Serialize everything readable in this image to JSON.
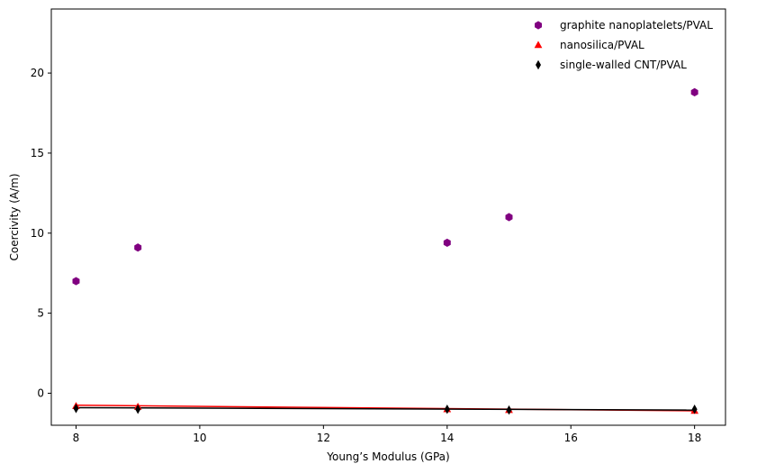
{
  "chart_data": {
    "type": "scatter",
    "title": "",
    "xlabel": "Young’s Modulus (GPa)",
    "ylabel": "Coercivity (A/m)",
    "xlim": [
      7.6,
      18.5
    ],
    "ylim": [
      -2.0,
      24.0
    ],
    "xticks": [
      8,
      10,
      12,
      14,
      16,
      18
    ],
    "yticks": [
      0,
      5,
      10,
      15,
      20
    ],
    "grid": false,
    "legend_position": "top-right",
    "series": [
      {
        "name": "graphite nanoplatelets/PVAL",
        "marker": "hexagon",
        "color": "#800080",
        "x": [
          8,
          9,
          14,
          15,
          18
        ],
        "y": [
          7.0,
          9.1,
          9.4,
          11.0,
          18.8
        ],
        "fit_line": null
      },
      {
        "name": "nanosilica/PVAL",
        "marker": "triangle",
        "color": "#ff0000",
        "x": [
          8,
          9,
          14,
          15,
          18
        ],
        "y": [
          -0.8,
          -0.85,
          -1.0,
          -1.05,
          -1.1
        ],
        "fit_line": {
          "x": [
            8,
            18
          ],
          "y": [
            -0.75,
            -1.1
          ]
        }
      },
      {
        "name": "single-walled CNT/PVAL",
        "marker": "diamond",
        "color": "#000000",
        "x": [
          8,
          9,
          14,
          15,
          18
        ],
        "y": [
          -0.95,
          -1.0,
          -1.0,
          -1.05,
          -1.0
        ],
        "fit_line": {
          "x": [
            8,
            18
          ],
          "y": [
            -0.9,
            -1.05
          ]
        }
      }
    ]
  }
}
